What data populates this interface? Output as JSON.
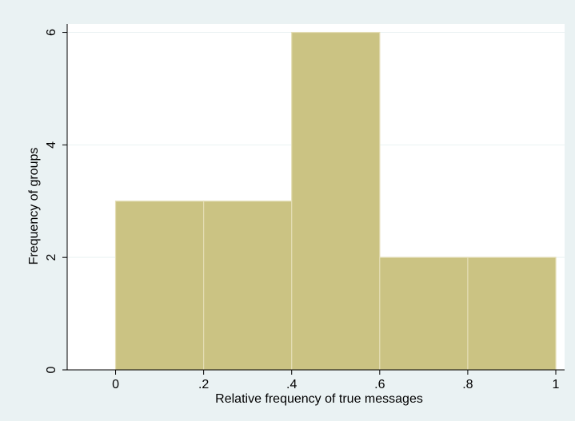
{
  "colors": {
    "outer_background": "#EAF2F3",
    "plot_background": "#FFFFFF",
    "bar_fill": "#CBC383",
    "bar_edge": "#E4DDB4",
    "grid": "#EAF2F3",
    "axis": "#000000"
  },
  "chart_data": {
    "type": "bar",
    "title": "",
    "xlabel": "Relative frequency of true messages",
    "ylabel": "Frequency of groups",
    "xlim": [
      -0.11,
      1.02
    ],
    "ylim": [
      0,
      6.15
    ],
    "grid": true,
    "x_ticks": [
      {
        "value": 0,
        "label": "0"
      },
      {
        "value": 0.2,
        "label": ".2"
      },
      {
        "value": 0.4,
        "label": ".4"
      },
      {
        "value": 0.6,
        "label": ".6"
      },
      {
        "value": 0.8,
        "label": ".8"
      },
      {
        "value": 1,
        "label": "1"
      }
    ],
    "y_ticks": [
      {
        "value": 0,
        "label": "0"
      },
      {
        "value": 2,
        "label": "2"
      },
      {
        "value": 4,
        "label": "4"
      },
      {
        "value": 6,
        "label": "6"
      }
    ],
    "bins": [
      {
        "start": 0.0,
        "end": 0.2,
        "value": 3
      },
      {
        "start": 0.2,
        "end": 0.4,
        "value": 3
      },
      {
        "start": 0.4,
        "end": 0.6,
        "value": 6
      },
      {
        "start": 0.6,
        "end": 0.8,
        "value": 2
      },
      {
        "start": 0.8,
        "end": 1.0,
        "value": 2
      }
    ]
  }
}
